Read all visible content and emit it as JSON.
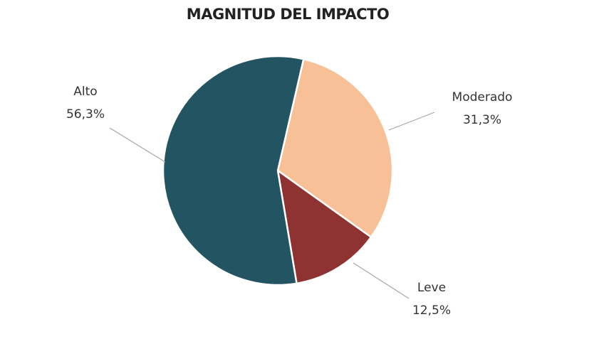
{
  "chart_data": {
    "type": "pie",
    "title": "MAGNITUD DEL IMPACTO",
    "slices": [
      {
        "name": "Alto",
        "value": 56.3,
        "value_label": "56,3%",
        "color": "#235462"
      },
      {
        "name": "Moderado",
        "value": 31.3,
        "value_label": "31,3%",
        "color": "#f8c097"
      },
      {
        "name": "Leve",
        "value": 12.5,
        "value_label": "12,5%",
        "color": "#8e3331"
      }
    ],
    "legend": "none",
    "labels": "outside-with-leader-lines"
  }
}
